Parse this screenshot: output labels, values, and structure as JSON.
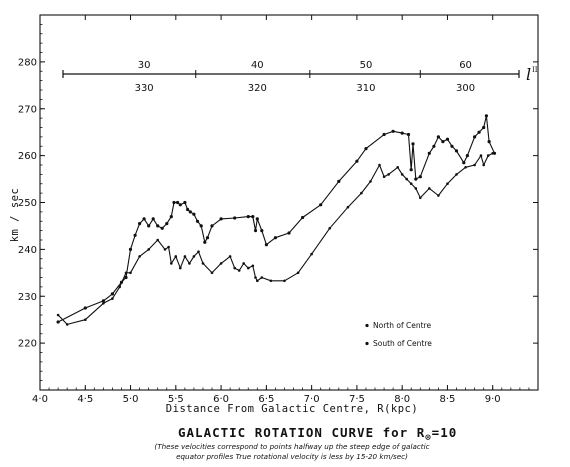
{
  "chart_data": {
    "type": "line",
    "title": "GALACTIC ROTATION CURVE for R",
    "title_subscript": "⊙",
    "title_suffix": "=10",
    "note_line1": "(These velocities correspond to points halfway up the steep edge of galactic",
    "note_line2": "equator profiles True rotational velocity is less by 15-20 km/sec)",
    "xlabel": "Distance From Galactic Centre, R(kpc)",
    "ylabel": "km / sec",
    "xlim": [
      4.0,
      9.5
    ],
    "ylim": [
      210,
      290
    ],
    "xticks": [
      "4·0",
      "4·5",
      "5·0",
      "5·5",
      "6·0",
      "6·5",
      "7·0",
      "7·5",
      "8·0",
      "8·5",
      "9·0"
    ],
    "yticks": [
      "220",
      "230",
      "240",
      "250",
      "260",
      "270",
      "280"
    ],
    "top_axis": {
      "symbol": "l",
      "superscript": "II",
      "marks": [
        {
          "upper": "30",
          "lower": "330",
          "r": 5.15
        },
        {
          "upper": "40",
          "lower": "320",
          "r": 6.4
        },
        {
          "upper": "50",
          "lower": "310",
          "r": 7.6
        },
        {
          "upper": "60",
          "lower": "300",
          "r": 8.7
        }
      ]
    },
    "legend": {
      "position": "lower-right",
      "entries": [
        "North of Centre",
        "South of Centre"
      ]
    },
    "series": [
      {
        "name": "North of Centre",
        "points": [
          [
            4.2,
            224.5
          ],
          [
            4.5,
            227.5
          ],
          [
            4.7,
            229
          ],
          [
            4.8,
            230.5
          ],
          [
            4.9,
            233
          ],
          [
            4.95,
            234
          ],
          [
            5.0,
            240
          ],
          [
            5.05,
            243
          ],
          [
            5.1,
            245.5
          ],
          [
            5.15,
            246.5
          ],
          [
            5.2,
            245
          ],
          [
            5.25,
            246.5
          ],
          [
            5.3,
            245
          ],
          [
            5.35,
            244.5
          ],
          [
            5.4,
            245.5
          ],
          [
            5.45,
            247
          ],
          [
            5.48,
            250
          ],
          [
            5.52,
            250
          ],
          [
            5.55,
            249.5
          ],
          [
            5.6,
            250
          ],
          [
            5.63,
            248.5
          ],
          [
            5.66,
            248
          ],
          [
            5.7,
            247.5
          ],
          [
            5.74,
            246
          ],
          [
            5.78,
            245
          ],
          [
            5.82,
            241.5
          ],
          [
            5.85,
            242.5
          ],
          [
            5.9,
            245
          ],
          [
            6.0,
            246.5
          ],
          [
            6.15,
            246.7
          ],
          [
            6.3,
            247
          ],
          [
            6.35,
            247
          ],
          [
            6.38,
            244
          ],
          [
            6.4,
            246.5
          ],
          [
            6.45,
            244
          ],
          [
            6.5,
            241
          ],
          [
            6.6,
            242.5
          ],
          [
            6.75,
            243.5
          ],
          [
            6.9,
            246.8
          ],
          [
            7.1,
            249.5
          ],
          [
            7.3,
            254.5
          ],
          [
            7.5,
            258.8
          ],
          [
            7.6,
            261.5
          ],
          [
            7.8,
            264.5
          ],
          [
            7.9,
            265.2
          ],
          [
            8.0,
            264.8
          ],
          [
            8.07,
            264.5
          ],
          [
            8.1,
            257
          ],
          [
            8.12,
            262.5
          ],
          [
            8.15,
            255
          ],
          [
            8.2,
            255.5
          ],
          [
            8.3,
            260.5
          ],
          [
            8.35,
            262
          ],
          [
            8.4,
            264
          ],
          [
            8.45,
            263
          ],
          [
            8.5,
            263.5
          ],
          [
            8.55,
            262
          ],
          [
            8.6,
            261
          ],
          [
            8.68,
            258.5
          ],
          [
            8.72,
            260
          ],
          [
            8.8,
            264
          ],
          [
            8.85,
            265
          ],
          [
            8.9,
            266
          ],
          [
            8.93,
            268.5
          ],
          [
            8.96,
            263
          ],
          [
            9.02,
            260.5
          ]
        ]
      },
      {
        "name": "South of Centre",
        "points": [
          [
            4.2,
            226
          ],
          [
            4.3,
            224
          ],
          [
            4.5,
            225
          ],
          [
            4.7,
            228.5
          ],
          [
            4.8,
            229.5
          ],
          [
            4.88,
            232
          ],
          [
            4.95,
            235
          ],
          [
            5.0,
            235
          ],
          [
            5.1,
            238.5
          ],
          [
            5.2,
            240
          ],
          [
            5.3,
            242
          ],
          [
            5.38,
            240
          ],
          [
            5.42,
            240.5
          ],
          [
            5.45,
            237
          ],
          [
            5.5,
            238.5
          ],
          [
            5.55,
            236
          ],
          [
            5.6,
            238.5
          ],
          [
            5.65,
            237
          ],
          [
            5.7,
            238.5
          ],
          [
            5.75,
            239.5
          ],
          [
            5.8,
            237
          ],
          [
            5.9,
            235
          ],
          [
            6.0,
            237
          ],
          [
            6.1,
            238.5
          ],
          [
            6.15,
            236
          ],
          [
            6.2,
            235.5
          ],
          [
            6.25,
            237
          ],
          [
            6.3,
            236
          ],
          [
            6.35,
            236.5
          ],
          [
            6.38,
            234
          ],
          [
            6.4,
            233.3
          ],
          [
            6.45,
            234
          ],
          [
            6.55,
            233.3
          ],
          [
            6.7,
            233.3
          ],
          [
            6.85,
            235
          ],
          [
            7.0,
            239
          ],
          [
            7.2,
            244.5
          ],
          [
            7.4,
            249
          ],
          [
            7.55,
            252
          ],
          [
            7.65,
            254.5
          ],
          [
            7.75,
            258
          ],
          [
            7.8,
            255.5
          ],
          [
            7.85,
            256
          ],
          [
            7.95,
            257.5
          ],
          [
            8.0,
            256
          ],
          [
            8.05,
            255
          ],
          [
            8.1,
            254
          ],
          [
            8.15,
            253
          ],
          [
            8.2,
            251
          ],
          [
            8.3,
            253
          ],
          [
            8.4,
            251.5
          ],
          [
            8.5,
            254
          ],
          [
            8.6,
            256
          ],
          [
            8.7,
            257.5
          ],
          [
            8.8,
            258
          ],
          [
            8.87,
            260
          ],
          [
            8.9,
            258
          ],
          [
            8.95,
            260
          ],
          [
            9.0,
            260.5
          ]
        ]
      }
    ]
  }
}
